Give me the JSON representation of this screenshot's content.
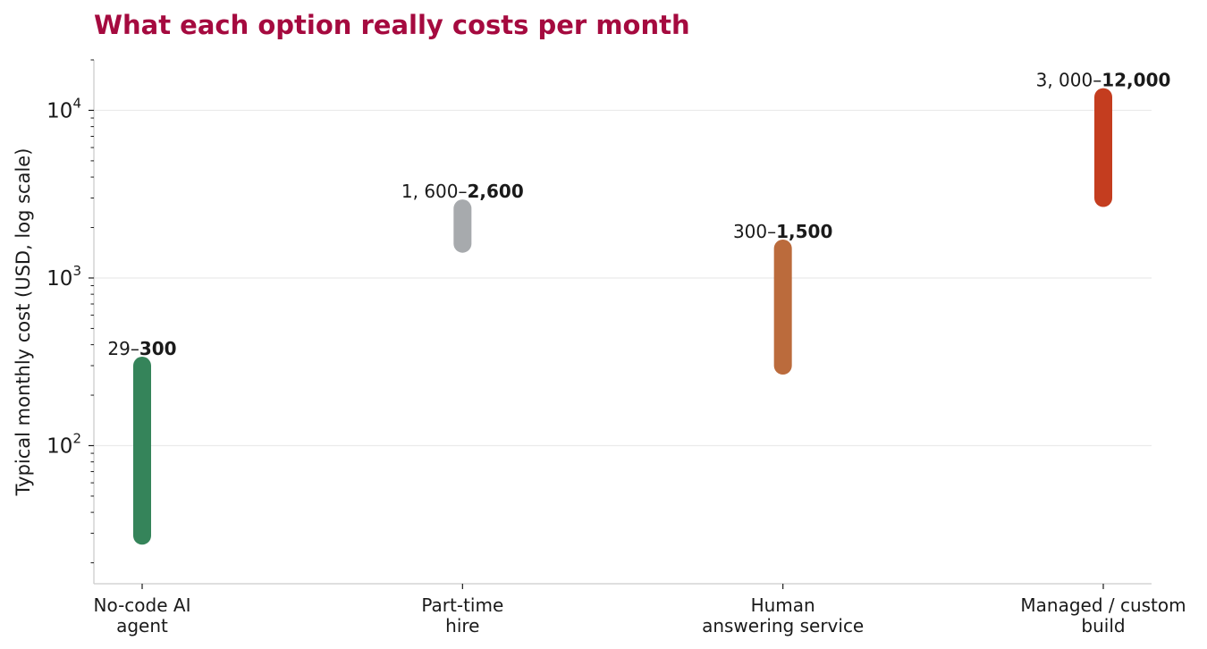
{
  "colors": {
    "title": "#a50a3f",
    "text": "#1a1a1a",
    "grid": "#ebebeb",
    "axis": "#cccccc"
  },
  "chart_data": {
    "type": "range-bar",
    "title": "What each option really costs per month",
    "xlabel": "",
    "ylabel": "Typical monthly cost (USD, log scale)",
    "yscale": "log",
    "ylim": [
      15,
      20000
    ],
    "yticks": [
      {
        "value": 100,
        "base": "10",
        "exp": "2"
      },
      {
        "value": 1000,
        "base": "10",
        "exp": "3"
      },
      {
        "value": 10000,
        "base": "10",
        "exp": "4"
      }
    ],
    "grid": "horizontal-major",
    "categories": [
      {
        "lines": [
          "No-code AI",
          "agent"
        ],
        "low": 29,
        "high": 300,
        "label_low": "29–",
        "label_high": "300",
        "color": "#35845a"
      },
      {
        "lines": [
          "Part-time",
          "hire"
        ],
        "low": 1600,
        "high": 2600,
        "label_low": "1, 600–",
        "label_high": "2,600",
        "color": "#a7aaad"
      },
      {
        "lines": [
          "Human",
          "answering service"
        ],
        "low": 300,
        "high": 1500,
        "label_low": "300–",
        "label_high": "1,500",
        "color": "#bb6b3c"
      },
      {
        "lines": [
          "Managed / custom",
          "build"
        ],
        "low": 3000,
        "high": 12000,
        "label_low": "3, 000–",
        "label_high": "12,000",
        "color": "#c43d1f"
      }
    ]
  }
}
